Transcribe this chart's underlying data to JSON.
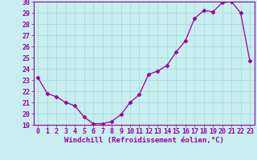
{
  "x": [
    0,
    1,
    2,
    3,
    4,
    5,
    6,
    7,
    8,
    9,
    10,
    11,
    12,
    13,
    14,
    15,
    16,
    17,
    18,
    19,
    20,
    21,
    22,
    23
  ],
  "y": [
    23.2,
    21.8,
    21.5,
    21.0,
    20.7,
    19.7,
    19.1,
    19.1,
    19.3,
    19.9,
    21.0,
    21.7,
    23.5,
    23.8,
    24.3,
    25.5,
    26.5,
    28.5,
    29.2,
    29.1,
    29.9,
    30.0,
    29.0,
    24.7
  ],
  "line_color": "#990099",
  "marker": "D",
  "markersize": 2.5,
  "linewidth": 0.9,
  "xlabel": "Windchill (Refroidissement éolien,°C)",
  "ylim": [
    19,
    30
  ],
  "xlim_min": -0.5,
  "xlim_max": 23.5,
  "yticks": [
    19,
    20,
    21,
    22,
    23,
    24,
    25,
    26,
    27,
    28,
    29,
    30
  ],
  "xticks": [
    0,
    1,
    2,
    3,
    4,
    5,
    6,
    7,
    8,
    9,
    10,
    11,
    12,
    13,
    14,
    15,
    16,
    17,
    18,
    19,
    20,
    21,
    22,
    23
  ],
  "bg_color": "#c8eef0",
  "grid_color": "#aadddd",
  "spine_color": "#990099",
  "label_color": "#990099",
  "xlabel_fontsize": 6.5,
  "tick_fontsize": 6
}
